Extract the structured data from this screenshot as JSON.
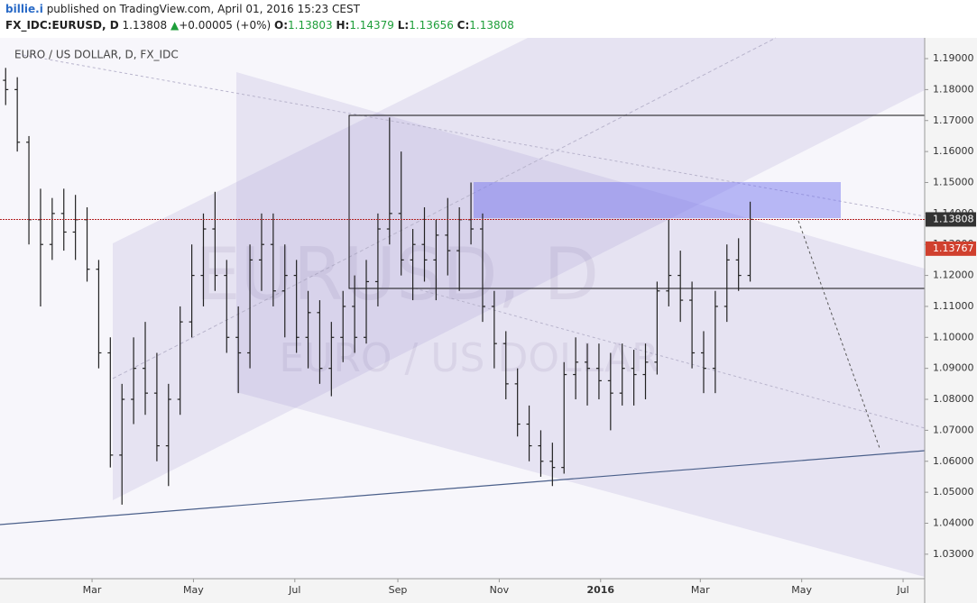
{
  "header": {
    "author": "billie.i",
    "published": "published on TradingView.com, April 01, 2016 15:23 CEST",
    "symbol": "FX_IDC:EURUSD, D",
    "last": "1.13808",
    "change": "+0.00005 (+0%)",
    "o_label": "O:",
    "o": "1.13803",
    "h_label": "H:",
    "h": "1.14379",
    "l_label": "L:",
    "l": "1.13656",
    "c_label": "C:",
    "c": "1.13808"
  },
  "chart_data": {
    "type": "ohlc",
    "title": "EURO / US DOLLAR, D, FX_IDC",
    "watermark": "EURUSD, D",
    "watermark_sub": "EURO / US DOLLAR",
    "color": "#222222",
    "x": [
      7,
      14,
      21,
      28,
      35,
      42,
      49,
      56,
      63,
      70,
      77,
      84,
      91,
      98,
      105,
      112,
      119,
      126,
      133,
      140,
      147,
      154,
      161,
      168,
      175,
      182,
      189,
      196,
      203,
      210,
      217,
      224,
      231,
      238,
      245,
      252,
      259,
      266,
      273,
      280,
      287,
      294,
      301,
      308,
      315,
      322,
      329,
      336,
      343,
      350,
      357,
      364,
      371,
      378,
      385,
      392,
      399,
      406,
      413,
      420,
      427,
      434,
      441,
      448,
      455
    ],
    "open": [
      1.183,
      1.18,
      1.163,
      1.138,
      1.13,
      1.14,
      1.134,
      1.138,
      1.122,
      1.095,
      1.062,
      1.08,
      1.09,
      1.082,
      1.065,
      1.08,
      1.105,
      1.12,
      1.135,
      1.12,
      1.1,
      1.095,
      1.125,
      1.13,
      1.115,
      1.12,
      1.1,
      1.108,
      1.09,
      1.1,
      1.11,
      1.1,
      1.118,
      1.135,
      1.14,
      1.125,
      1.13,
      1.125,
      1.133,
      1.128,
      1.138,
      1.135,
      1.11,
      1.098,
      1.085,
      1.072,
      1.065,
      1.06,
      1.058,
      1.088,
      1.092,
      1.09,
      1.086,
      1.082,
      1.09,
      1.088,
      1.092,
      1.115,
      1.12,
      1.112,
      1.095,
      1.09,
      1.11,
      1.125,
      1.12
    ],
    "high": [
      1.187,
      1.184,
      1.165,
      1.148,
      1.145,
      1.148,
      1.146,
      1.142,
      1.125,
      1.1,
      1.085,
      1.1,
      1.105,
      1.095,
      1.085,
      1.11,
      1.13,
      1.14,
      1.147,
      1.125,
      1.11,
      1.13,
      1.14,
      1.14,
      1.13,
      1.125,
      1.115,
      1.112,
      1.105,
      1.115,
      1.12,
      1.125,
      1.14,
      1.171,
      1.16,
      1.135,
      1.142,
      1.138,
      1.145,
      1.142,
      1.15,
      1.14,
      1.115,
      1.102,
      1.09,
      1.078,
      1.07,
      1.066,
      1.092,
      1.1,
      1.098,
      1.098,
      1.095,
      1.098,
      1.096,
      1.098,
      1.118,
      1.138,
      1.128,
      1.118,
      1.102,
      1.115,
      1.13,
      1.132,
      1.1438
    ],
    "low": [
      1.175,
      1.16,
      1.13,
      1.11,
      1.125,
      1.128,
      1.125,
      1.118,
      1.09,
      1.058,
      1.046,
      1.072,
      1.075,
      1.06,
      1.052,
      1.075,
      1.1,
      1.11,
      1.115,
      1.095,
      1.082,
      1.09,
      1.115,
      1.11,
      1.1,
      1.095,
      1.09,
      1.085,
      1.081,
      1.092,
      1.095,
      1.098,
      1.11,
      1.13,
      1.12,
      1.112,
      1.118,
      1.112,
      1.12,
      1.115,
      1.13,
      1.105,
      1.09,
      1.08,
      1.068,
      1.06,
      1.055,
      1.052,
      1.056,
      1.08,
      1.078,
      1.08,
      1.07,
      1.078,
      1.078,
      1.08,
      1.088,
      1.11,
      1.105,
      1.09,
      1.082,
      1.082,
      1.105,
      1.115,
      1.118
    ],
    "close": [
      1.18,
      1.163,
      1.138,
      1.13,
      1.14,
      1.134,
      1.138,
      1.122,
      1.095,
      1.062,
      1.08,
      1.09,
      1.082,
      1.065,
      1.08,
      1.105,
      1.12,
      1.135,
      1.12,
      1.1,
      1.095,
      1.125,
      1.13,
      1.115,
      1.12,
      1.1,
      1.108,
      1.09,
      1.1,
      1.11,
      1.1,
      1.118,
      1.135,
      1.14,
      1.125,
      1.13,
      1.125,
      1.133,
      1.128,
      1.138,
      1.135,
      1.11,
      1.098,
      1.085,
      1.072,
      1.065,
      1.06,
      1.058,
      1.088,
      1.092,
      1.09,
      1.086,
      1.082,
      1.09,
      1.088,
      1.092,
      1.115,
      1.12,
      1.112,
      1.095,
      1.09,
      1.11,
      1.125,
      1.12,
      1.1381
    ],
    "xlim": [
      3.6,
      560
    ],
    "xticks": [
      {
        "value": 59,
        "label": "Mar"
      },
      {
        "value": 120,
        "label": "May"
      },
      {
        "value": 181,
        "label": "Jul"
      },
      {
        "value": 243,
        "label": "Sep"
      },
      {
        "value": 304,
        "label": "Nov"
      },
      {
        "value": 365,
        "label": "2016"
      },
      {
        "value": 425,
        "label": "Mar"
      },
      {
        "value": 486,
        "label": "May"
      },
      {
        "value": 547,
        "label": "Jul"
      }
    ],
    "ylim": [
      1.0221,
      1.1967
    ],
    "yticks": [
      {
        "value": 1.03,
        "label": "1.03000"
      },
      {
        "value": 1.04,
        "label": "1.04000"
      },
      {
        "value": 1.05,
        "label": "1.05000"
      },
      {
        "value": 1.06,
        "label": "1.06000"
      },
      {
        "value": 1.07,
        "label": "1.07000"
      },
      {
        "value": 1.08,
        "label": "1.08000"
      },
      {
        "value": 1.09,
        "label": "1.09000"
      },
      {
        "value": 1.1,
        "label": "1.10000"
      },
      {
        "value": 1.11,
        "label": "1.11000"
      },
      {
        "value": 1.12,
        "label": "1.12000"
      },
      {
        "value": 1.13,
        "label": "1.13000"
      },
      {
        "value": 1.14,
        "label": "1.14000"
      },
      {
        "value": 1.15,
        "label": "1.15000"
      },
      {
        "value": 1.16,
        "label": "1.16000"
      },
      {
        "value": 1.17,
        "label": "1.17000"
      },
      {
        "value": 1.18,
        "label": "1.18000"
      },
      {
        "value": 1.19,
        "label": "1.19000"
      }
    ],
    "last_price": {
      "value": 1.13808,
      "label": "1.13808",
      "color": "#b22222"
    },
    "prev_price": {
      "value": 1.13767,
      "label": "1.13767",
      "color": "#d0402e"
    }
  }
}
